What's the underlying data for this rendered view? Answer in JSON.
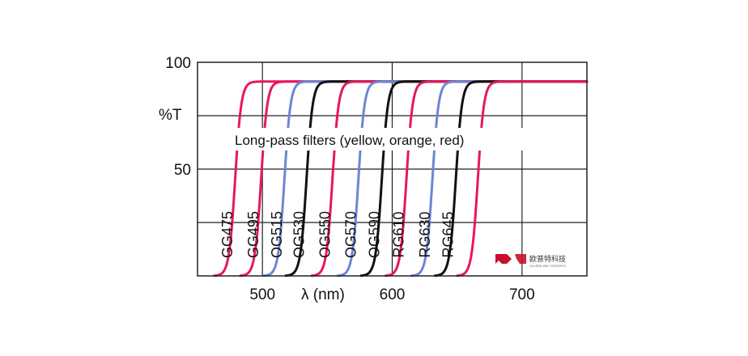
{
  "chart_data": {
    "type": "line",
    "title": "Long-pass filters (yellow, orange, red)",
    "xlabel": "λ (nm)",
    "ylabel": "%T",
    "xlim": [
      450,
      750
    ],
    "ylim": [
      0,
      100
    ],
    "x_ticks": [
      {
        "value": 500,
        "label": "500"
      },
      {
        "value": 600,
        "label": "600"
      },
      {
        "value": 700,
        "label": "700"
      }
    ],
    "y_ticks": [
      {
        "value": 50,
        "label": "50"
      },
      {
        "value": 100,
        "label": "100"
      }
    ],
    "grid": true,
    "plateau": 91,
    "series": [
      {
        "name": "GG475",
        "edge": 475,
        "color": "#e8175d"
      },
      {
        "name": "GG495",
        "edge": 495,
        "color": "#e8175d"
      },
      {
        "name": "OG515",
        "edge": 513,
        "color": "#6b86d6"
      },
      {
        "name": "OG530",
        "edge": 530,
        "color": "#111111"
      },
      {
        "name": "OG550",
        "edge": 550,
        "color": "#e8175d"
      },
      {
        "name": "OG570",
        "edge": 570,
        "color": "#6b86d6"
      },
      {
        "name": "OG590",
        "edge": 588,
        "color": "#111111"
      },
      {
        "name": "RG610",
        "edge": 607,
        "color": "#e8175d"
      },
      {
        "name": "RG630",
        "edge": 627,
        "color": "#6b86d6"
      },
      {
        "name": "RG645",
        "edge": 645,
        "color": "#111111"
      },
      {
        "name": "",
        "edge": 662,
        "color": "#e8175d"
      }
    ]
  },
  "watermark": {
    "brand_cn": "欧普特科技",
    "brand_en": "GOLDEN WAY SCIENTIFIC",
    "color": "#c8102e"
  }
}
